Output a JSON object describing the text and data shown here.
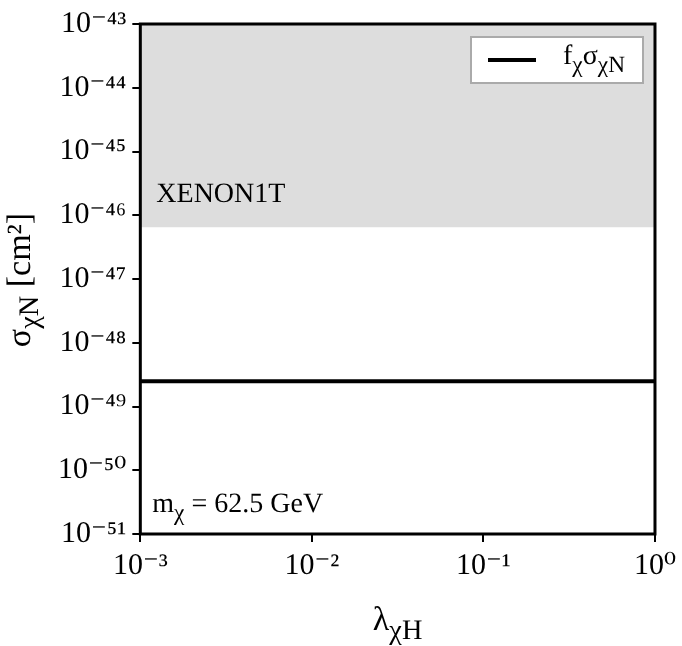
{
  "chart_data": {
    "type": "line",
    "xlabel": "λ$_{χH}$",
    "ylabel": "σ$_{χN}$ [cm²]",
    "log": "xy",
    "grid": false,
    "legend": "top right",
    "marker": "none",
    "line_style": "solid",
    "xlim": [
      0.001,
      1
    ],
    "xticks": [
      {
        "value": 0.001,
        "label": "10⁻³"
      },
      {
        "value": 0.01,
        "label": "10⁻²"
      },
      {
        "value": 0.1,
        "label": "10⁻¹"
      },
      {
        "value": 1,
        "label": "10⁰"
      }
    ],
    "ylim": [
      1e-51,
      1e-43
    ],
    "yticks": [
      {
        "value": 1e-51,
        "label": "10⁻⁵¹"
      },
      {
        "value": 1e-50,
        "label": "10⁻⁵⁰"
      },
      {
        "value": 1e-49,
        "label": "10⁻⁴⁹"
      },
      {
        "value": 1e-48,
        "label": "10⁻⁴⁸"
      },
      {
        "value": 1e-47,
        "label": "10⁻⁴⁷"
      },
      {
        "value": 1e-46,
        "label": "10⁻⁴⁶"
      },
      {
        "value": 1e-45,
        "label": "10⁻⁴⁵"
      },
      {
        "value": 1e-44,
        "label": "10⁻⁴⁴"
      },
      {
        "value": 1e-43,
        "label": "10⁻⁴³"
      }
    ],
    "series": [
      {
        "name": "f$_{χ}$σ$_{χN}$",
        "color": "#000000",
        "x": [
          0.001,
          1
        ],
        "values": [
          2.5e-49,
          2.5e-49
        ]
      }
    ],
    "bands": [
      {
        "axis": "y",
        "from": 6.5e-47,
        "to": 1e-43,
        "label": "XENON1T",
        "color": "#dddddd"
      }
    ],
    "annotations": [
      "m$_{χ}$ = 62.5 GeV"
    ]
  }
}
